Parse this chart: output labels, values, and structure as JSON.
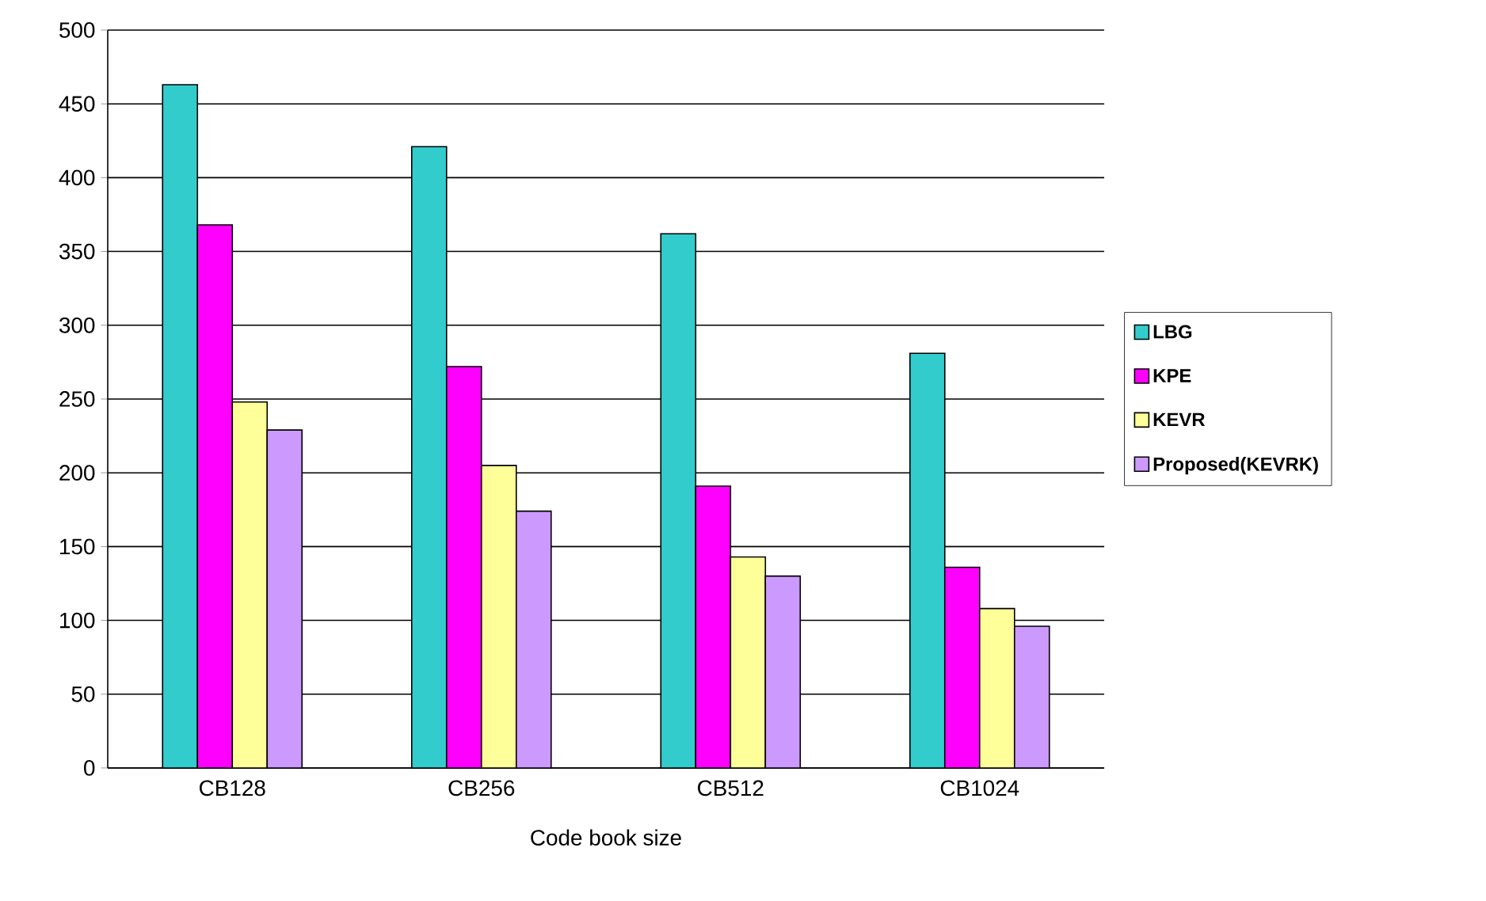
{
  "chart_data": {
    "type": "bar",
    "xlabel": "Code book size",
    "categories": [
      "CB128",
      "CB256",
      "CB512",
      "CB1024"
    ],
    "series": [
      {
        "name": "LBG",
        "color": "#33cccc",
        "values": [
          463,
          421,
          362,
          281
        ]
      },
      {
        "name": "KPE",
        "color": "#ff00ff",
        "values": [
          368,
          272,
          191,
          136
        ]
      },
      {
        "name": "KEVR",
        "color": "#ffff99",
        "values": [
          248,
          205,
          143,
          108
        ]
      },
      {
        "name": "Proposed(KEVRK)",
        "color": "#cc99ff",
        "values": [
          229,
          174,
          130,
          96
        ]
      }
    ],
    "ylim": [
      0,
      500
    ],
    "yticks": [
      0,
      50,
      100,
      150,
      200,
      250,
      300,
      350,
      400,
      450,
      500
    ],
    "grid": "y",
    "legend": "right"
  }
}
